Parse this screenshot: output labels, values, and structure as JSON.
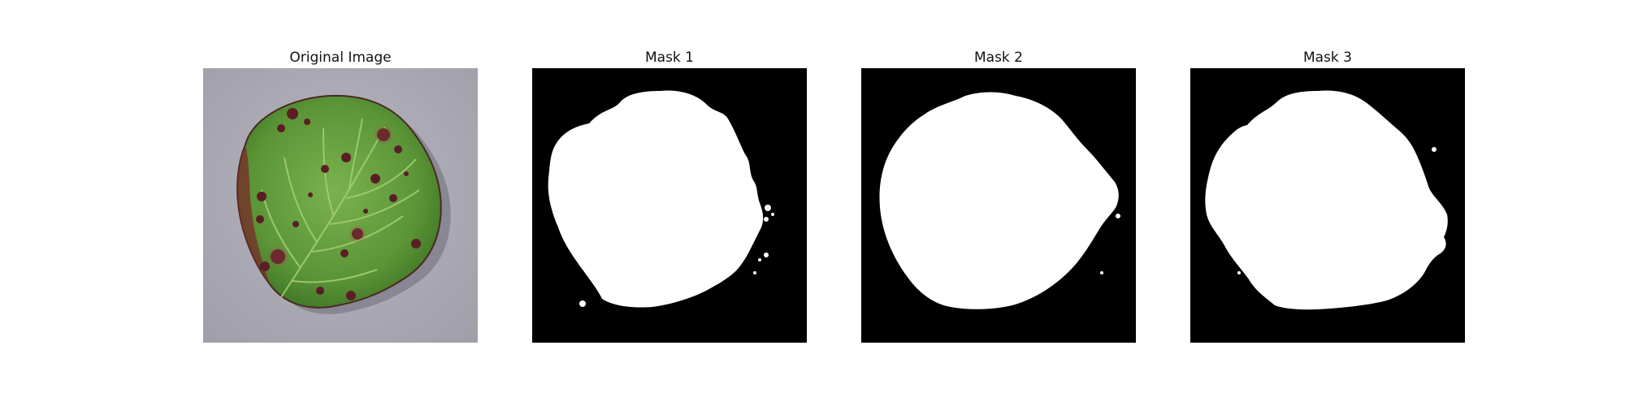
{
  "panels": [
    {
      "title": "Original Image",
      "kind": "photo",
      "subject": "leaf-with-spots"
    },
    {
      "title": "Mask 1",
      "kind": "mask",
      "background": "#000000",
      "foreground": "#ffffff"
    },
    {
      "title": "Mask 2",
      "kind": "mask",
      "background": "#000000",
      "foreground": "#ffffff"
    },
    {
      "title": "Mask 3",
      "kind": "mask",
      "background": "#000000",
      "foreground": "#ffffff"
    }
  ],
  "colors": {
    "background": "#ffffff",
    "title_text": "#111111",
    "leaf_green": "#5f9a3c",
    "leaf_dark": "#3d6e27",
    "lesion": "#5a1f24",
    "gray_surface": "#a9a8b3"
  }
}
